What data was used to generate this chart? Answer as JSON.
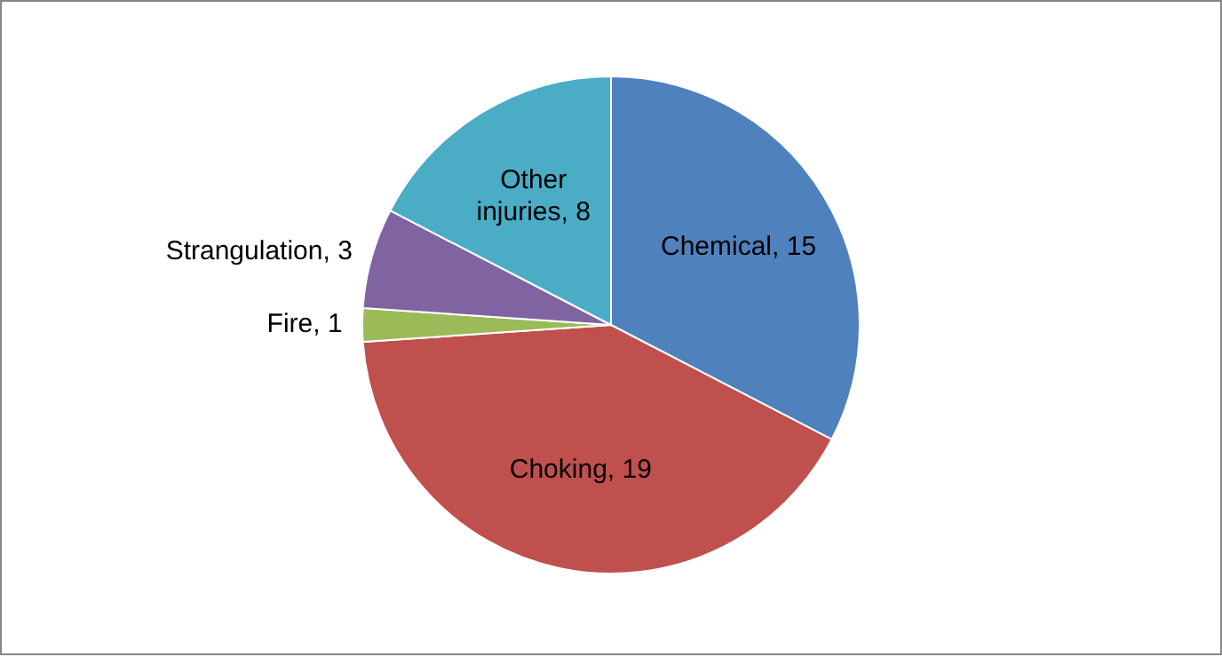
{
  "chart_data": {
    "type": "pie",
    "categories": [
      "Chemical",
      "Choking",
      "Fire",
      "Strangulation",
      "Other injuries"
    ],
    "values": [
      15,
      19,
      1,
      3,
      8
    ],
    "value_labels": [
      ", 15",
      ", 19",
      ", 1",
      ", 3",
      ", 8"
    ],
    "colors": [
      "#4f81bd",
      "#c0504d",
      "#9bbb59",
      "#8064a2",
      "#4bacc6"
    ]
  }
}
